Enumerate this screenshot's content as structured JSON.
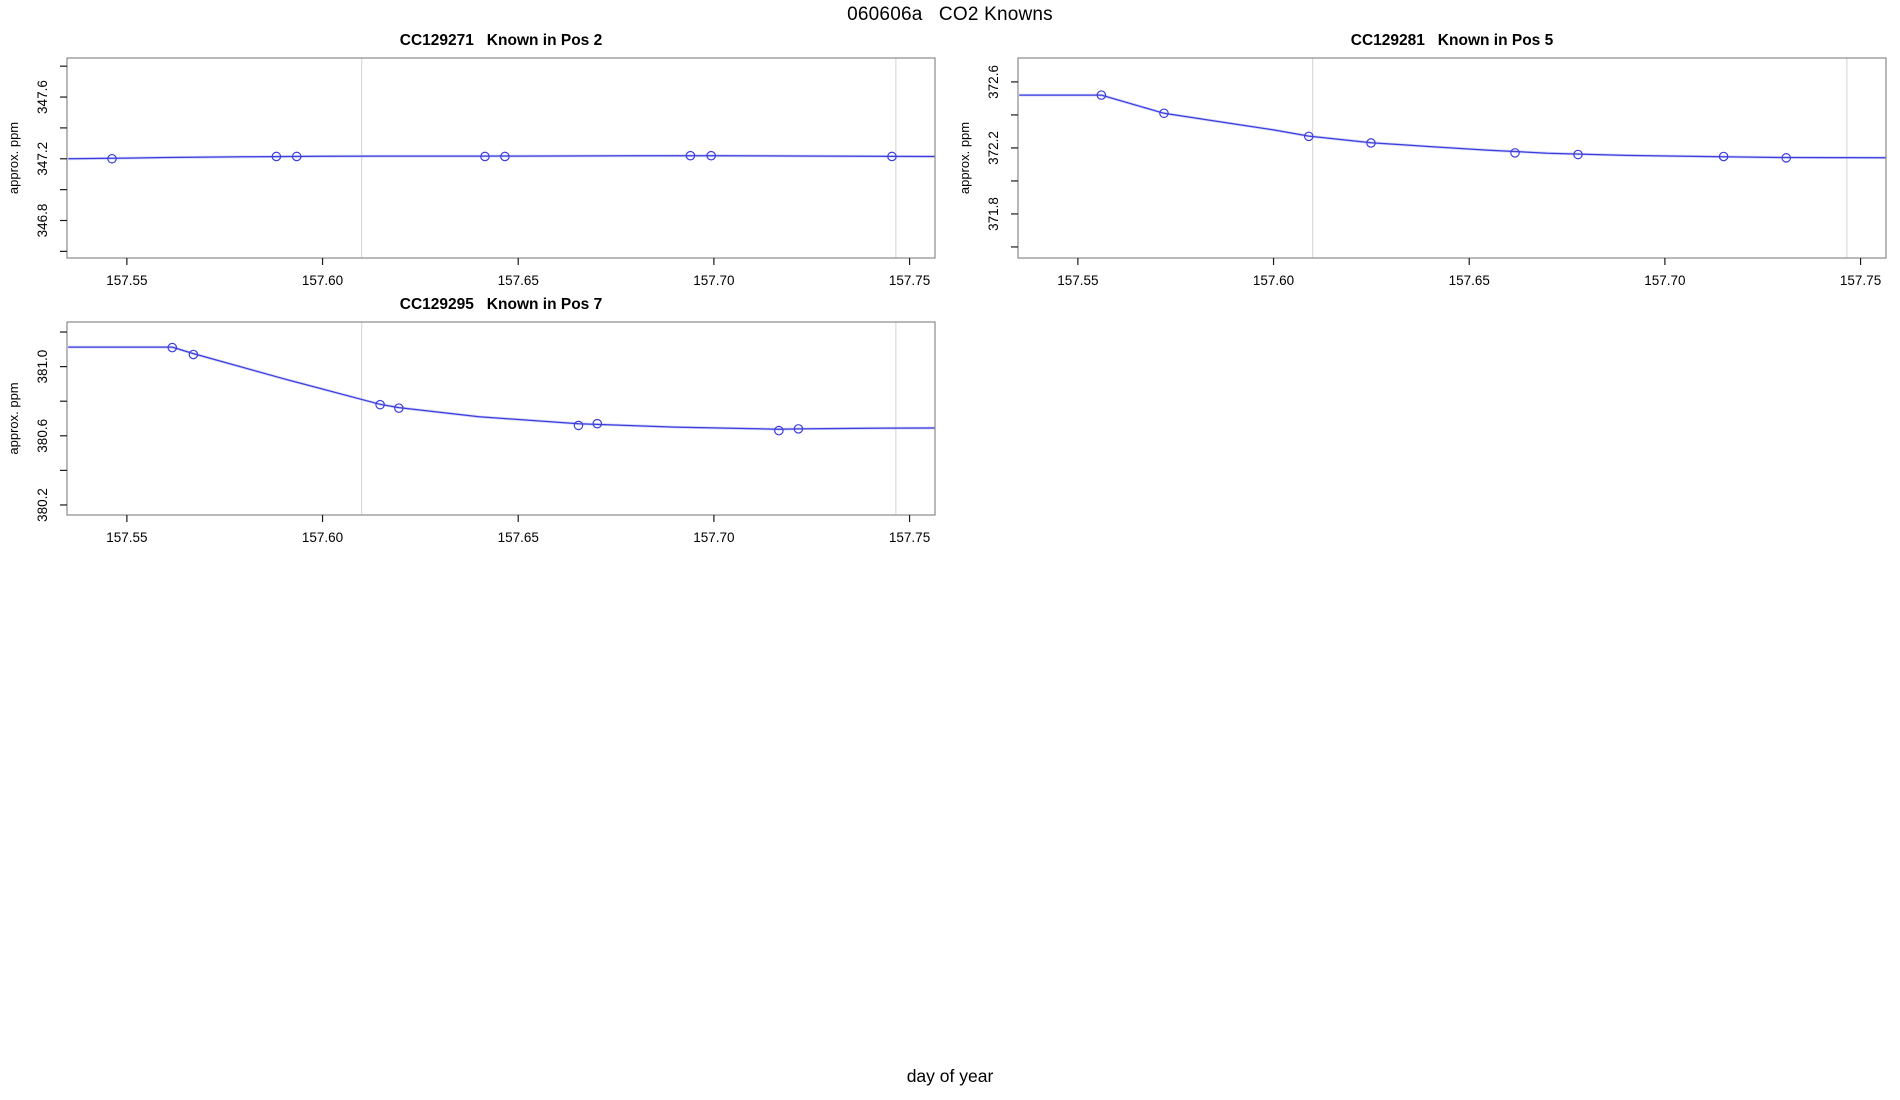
{
  "figure": {
    "title": "060606a   CO2 Knowns",
    "bottom_label": "day of year",
    "line_color": "#3c3cdf",
    "halo_color": "#b4bbf1",
    "marker_color": "#3c3cdf",
    "guide_color": "#d6d6d6",
    "box_color": "#8a8a8a",
    "tick_color": "#1a1a1a",
    "text_color": "#000000"
  },
  "chart_data": [
    {
      "type": "line",
      "title": "CC129271   Known in Pos 2",
      "ylabel": "approx. ppm",
      "xlabel": "",
      "grid": "off",
      "xlim": [
        157.5347,
        157.7565
      ],
      "ylim": [
        346.557,
        347.853
      ],
      "xticks": [
        157.55,
        157.6,
        157.65,
        157.7,
        157.75
      ],
      "xtick_labels": [
        "157.55",
        "157.60",
        "157.65",
        "157.70",
        "157.75"
      ],
      "yticks": [
        346.6,
        346.8,
        347.0,
        347.2,
        347.4,
        347.6,
        347.8
      ],
      "ytick_labels": [
        "",
        "346.8",
        "",
        "347.2",
        "",
        "347.6",
        ""
      ],
      "guides_x": [
        157.61,
        157.7465
      ],
      "points": [
        [
          157.5462,
          347.2
        ],
        [
          157.5882,
          347.215
        ],
        [
          157.5934,
          347.215
        ],
        [
          157.6415,
          347.215
        ],
        [
          157.6466,
          347.215
        ],
        [
          157.694,
          347.22
        ],
        [
          157.6993,
          347.22
        ],
        [
          157.7455,
          347.215
        ]
      ],
      "line": [
        [
          157.535,
          347.2
        ],
        [
          157.5462,
          347.203
        ],
        [
          157.56,
          347.208
        ],
        [
          157.58,
          347.213
        ],
        [
          157.6,
          347.216
        ],
        [
          157.62,
          347.217
        ],
        [
          157.64,
          347.217
        ],
        [
          157.66,
          347.218
        ],
        [
          157.68,
          347.219
        ],
        [
          157.7,
          347.22
        ],
        [
          157.72,
          347.218
        ],
        [
          157.74,
          347.216
        ],
        [
          157.7565,
          347.215
        ]
      ]
    },
    {
      "type": "line",
      "title": "CC129281   Known in Pos 5",
      "ylabel": "approx. ppm",
      "xlabel": "",
      "grid": "off",
      "xlim": [
        157.5347,
        157.7565
      ],
      "ylim": [
        371.533,
        372.745
      ],
      "xticks": [
        157.55,
        157.6,
        157.65,
        157.7,
        157.75
      ],
      "xtick_labels": [
        "157.55",
        "157.60",
        "157.65",
        "157.70",
        "157.75"
      ],
      "yticks": [
        371.6,
        371.8,
        372.0,
        372.2,
        372.4,
        372.6
      ],
      "ytick_labels": [
        "",
        "371.8",
        "",
        "372.2",
        "",
        "372.6"
      ],
      "guides_x": [
        157.61,
        157.7465
      ],
      "points": [
        [
          157.556,
          372.52
        ],
        [
          157.572,
          372.41
        ],
        [
          157.609,
          372.27
        ],
        [
          157.6249,
          372.23
        ],
        [
          157.6617,
          372.17
        ],
        [
          157.6778,
          372.16
        ],
        [
          157.715,
          372.148
        ],
        [
          157.731,
          372.14
        ]
      ],
      "line": [
        [
          157.535,
          372.52
        ],
        [
          157.556,
          372.52
        ],
        [
          157.572,
          372.41
        ],
        [
          157.585,
          372.363
        ],
        [
          157.6,
          372.309
        ],
        [
          157.609,
          372.272
        ],
        [
          157.6249,
          372.232
        ],
        [
          157.64,
          372.208
        ],
        [
          157.655,
          372.186
        ],
        [
          157.67,
          372.168
        ],
        [
          157.69,
          372.155
        ],
        [
          157.71,
          372.148
        ],
        [
          157.73,
          372.142
        ],
        [
          157.7565,
          372.141
        ]
      ]
    },
    {
      "type": "line",
      "title": "CC129295   Known in Pos 7",
      "ylabel": "approx. ppm",
      "xlabel": "",
      "grid": "off",
      "xlim": [
        157.5347,
        157.7565
      ],
      "ylim": [
        380.142,
        381.258
      ],
      "xticks": [
        157.55,
        157.6,
        157.65,
        157.7,
        157.75
      ],
      "xtick_labels": [
        "157.55",
        "157.60",
        "157.65",
        "157.70",
        "157.75"
      ],
      "yticks": [
        380.2,
        380.4,
        380.6,
        380.8,
        381.0,
        381.2
      ],
      "ytick_labels": [
        "380.2",
        "",
        "380.6",
        "",
        "381.0",
        ""
      ],
      "guides_x": [
        157.61,
        157.7465
      ],
      "points": [
        [
          157.5616,
          381.11
        ],
        [
          157.567,
          381.07
        ],
        [
          157.6147,
          380.78
        ],
        [
          157.6195,
          380.76
        ],
        [
          157.6654,
          380.66
        ],
        [
          157.6702,
          380.67
        ],
        [
          157.7166,
          380.63
        ],
        [
          157.7216,
          380.64
        ]
      ],
      "line": [
        [
          157.535,
          381.113
        ],
        [
          157.5616,
          381.113
        ],
        [
          157.567,
          381.075
        ],
        [
          157.59,
          380.93
        ],
        [
          157.6147,
          380.782
        ],
        [
          157.6195,
          380.763
        ],
        [
          157.64,
          380.71
        ],
        [
          157.6654,
          380.67
        ],
        [
          157.69,
          380.65
        ],
        [
          157.7166,
          380.638
        ],
        [
          157.7216,
          380.64
        ],
        [
          157.74,
          380.644
        ],
        [
          157.7565,
          380.645
        ]
      ]
    }
  ]
}
